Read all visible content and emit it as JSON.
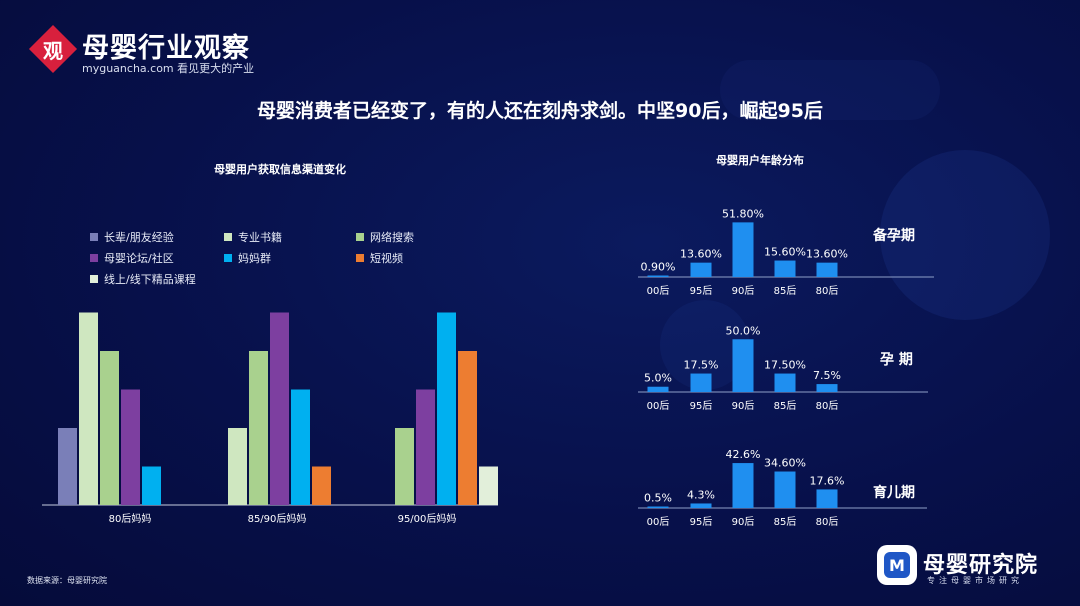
{
  "header": {
    "logo_char": "观",
    "logo_title": "母婴行业观察",
    "logo_subtitle": "myguancha.com 看见更大的产业"
  },
  "main_title": "母婴消费者已经变了，有的人还在刻舟求剑。中坚90后，崛起95后",
  "source": "数据来源：母婴研究院",
  "brand": {
    "icon_char": "M",
    "name": "母婴研究院",
    "slogan": "专注母婴市场研究"
  },
  "colors": {
    "bar_right": "#1f8ff0",
    "baseline": "#8fa0c8"
  },
  "chart_data": [
    {
      "type": "bar",
      "title": "母婴用户获取信息渠道变化",
      "categories": [
        "80后妈妈",
        "85/90后妈妈",
        "95/00后妈妈"
      ],
      "ylim": [
        0,
        5
      ],
      "grid": false,
      "legend": "top-left",
      "series": [
        {
          "name": "长辈/朋友经验",
          "color": "#7a7fb8",
          "values": [
            2,
            null,
            null
          ]
        },
        {
          "name": "专业书籍",
          "color": "#cfe7c0",
          "values": [
            5,
            2,
            null
          ]
        },
        {
          "name": "网络搜索",
          "color": "#a9d18e",
          "values": [
            4,
            4,
            2
          ]
        },
        {
          "name": "母婴论坛/社区",
          "color": "#7d3fa0",
          "values": [
            3,
            5,
            3
          ]
        },
        {
          "name": "妈妈群",
          "color": "#00b0f0",
          "values": [
            1,
            3,
            5
          ]
        },
        {
          "name": "短视频",
          "color": "#ed7d31",
          "values": [
            null,
            1,
            4
          ]
        },
        {
          "name": "线上/线下精品课程",
          "color": "#e2efda",
          "values": [
            null,
            null,
            1
          ]
        }
      ]
    },
    {
      "type": "bar",
      "title": "母婴用户年龄分布",
      "stage": "备孕期",
      "categories": [
        "00后",
        "95后",
        "90后",
        "85后",
        "80后"
      ],
      "values": [
        0.9,
        13.6,
        51.8,
        15.6,
        13.6
      ],
      "labels": [
        "0.90%",
        "13.60%",
        "51.80%",
        "15.60%",
        "13.60%"
      ],
      "ylim": [
        0,
        55
      ]
    },
    {
      "type": "bar",
      "stage": "孕 期",
      "categories": [
        "00后",
        "95后",
        "90后",
        "85后",
        "80后"
      ],
      "values": [
        5.0,
        17.5,
        50.0,
        17.5,
        7.5
      ],
      "labels": [
        "5.0%",
        "17.5%",
        "50.0%",
        "17.50%",
        "7.5%"
      ],
      "ylim": [
        0,
        55
      ]
    },
    {
      "type": "bar",
      "stage": "育儿期",
      "categories": [
        "00后",
        "95后",
        "90后",
        "85后",
        "80后"
      ],
      "values": [
        0.5,
        4.3,
        42.6,
        34.6,
        17.6
      ],
      "labels": [
        "0.5%",
        "4.3%",
        "42.6%",
        "34.60%",
        "17.6%"
      ],
      "ylim": [
        0,
        55
      ]
    }
  ]
}
